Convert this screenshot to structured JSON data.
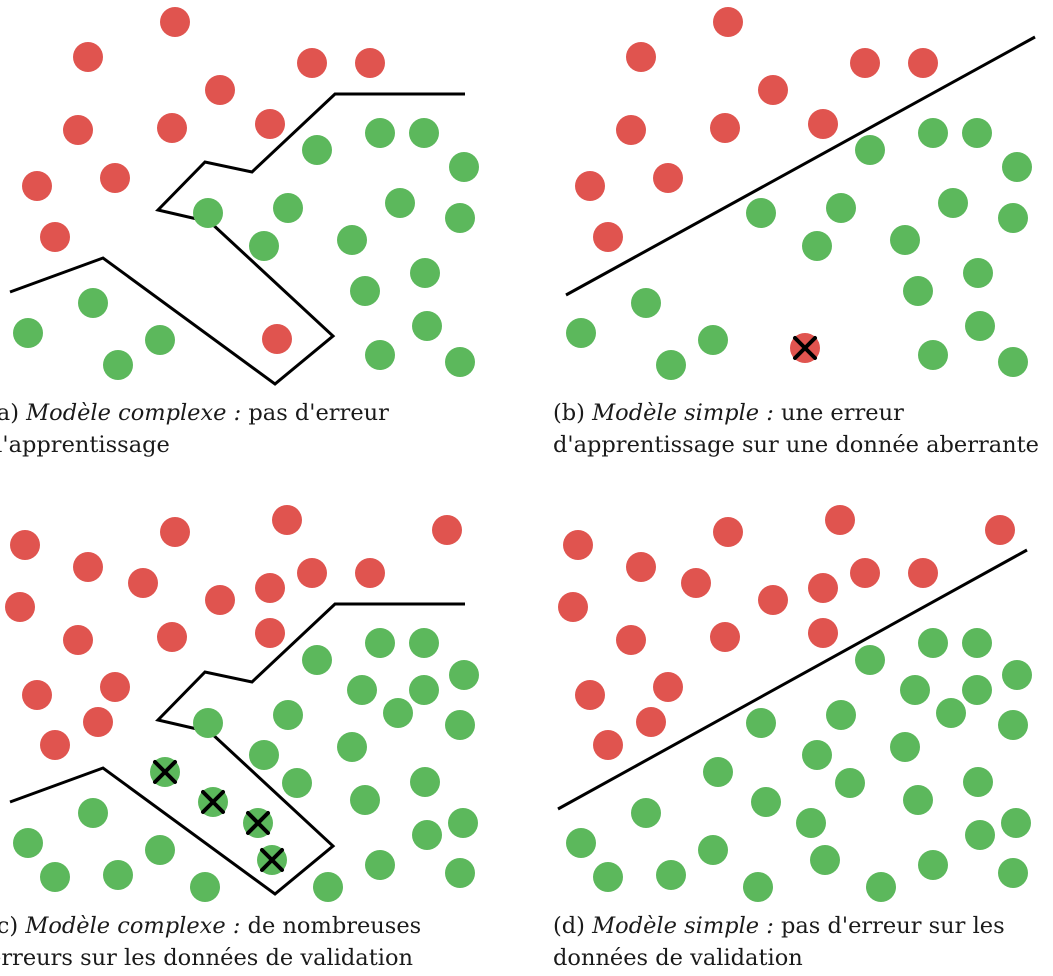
{
  "colors": {
    "red": "#e0544f",
    "green": "#5cb85c",
    "boundary": "#000000"
  },
  "panels": [
    {
      "id": "a",
      "caption": {
        "prefix": "(a) ",
        "model": "Modèle complexe :",
        "text": " pas d'erreur d'apprentissage"
      }
    },
    {
      "id": "b",
      "caption": {
        "prefix": "(b) ",
        "model": "Modèle simple :",
        "text": " une erreur d'apprentissage sur une donnée aberrante"
      }
    },
    {
      "id": "c",
      "caption": {
        "prefix": "(c) ",
        "model": "Modèle complexe :",
        "text": " de nombreuses erreurs sur les données de validation"
      }
    },
    {
      "id": "d",
      "caption": {
        "prefix": "(d) ",
        "model": "Modèle simple :",
        "text": " pas d'erreur sur les données de validation"
      }
    }
  ]
}
